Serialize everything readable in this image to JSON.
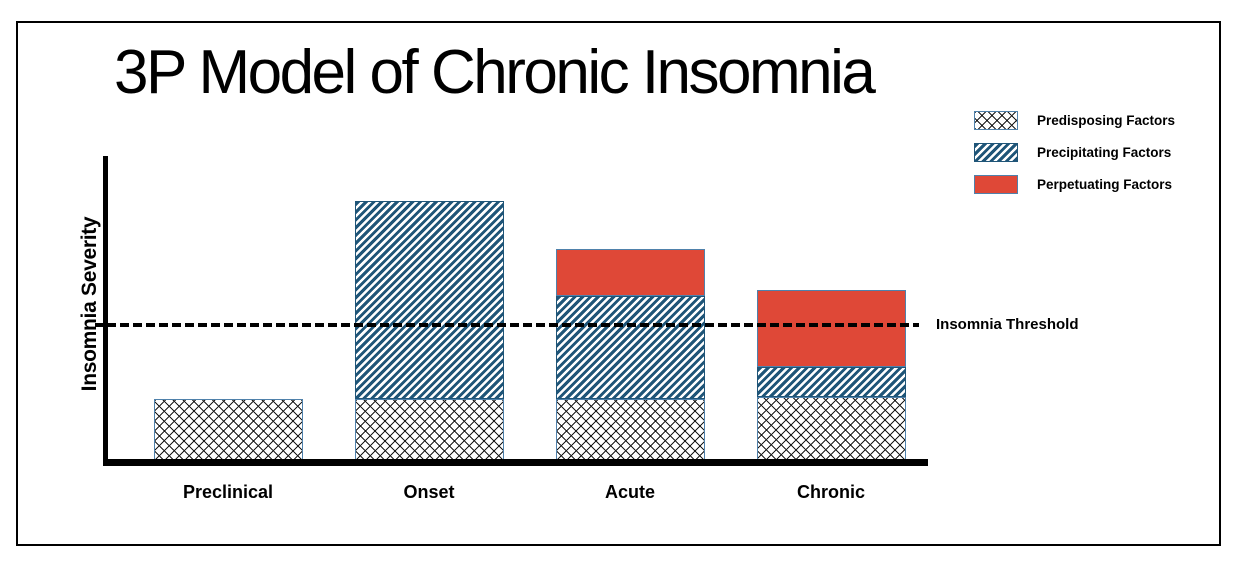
{
  "title": "3P Model of Chronic Insomnia",
  "colors": {
    "perpetuating_red": "#DF4837",
    "precipitating_blue": "#1F5578",
    "swatch_border_blue": "#4F81AB",
    "axis_black": "#000000"
  },
  "chart_data": {
    "type": "bar",
    "stacked": true,
    "title": "3P Model of Chronic Insomnia",
    "xlabel": "",
    "ylabel": "Insomnia Severity",
    "categories": [
      "Preclinical",
      "Onset",
      "Acute",
      "Chronic"
    ],
    "series": [
      {
        "name": "Predisposing Factors",
        "pattern": "crosshatch",
        "values": [
          21,
          21,
          21,
          21.5
        ]
      },
      {
        "name": "Precipitating Factors",
        "pattern": "diagonal",
        "values": [
          0,
          64.5,
          33.5,
          10
        ]
      },
      {
        "name": "Perpetuating Factors",
        "pattern": "solid",
        "values": [
          0,
          0,
          15.5,
          25
        ]
      }
    ],
    "threshold": {
      "label": "Insomnia Threshold",
      "value": 45
    },
    "ylim": [
      0,
      100
    ],
    "y_units": "relative insomnia severity (axis unlabeled)",
    "grid": false,
    "legend_position": "top-right",
    "legend": [
      "Predisposing Factors",
      "Precipitating Factors",
      "Perpetuating Factors"
    ]
  }
}
